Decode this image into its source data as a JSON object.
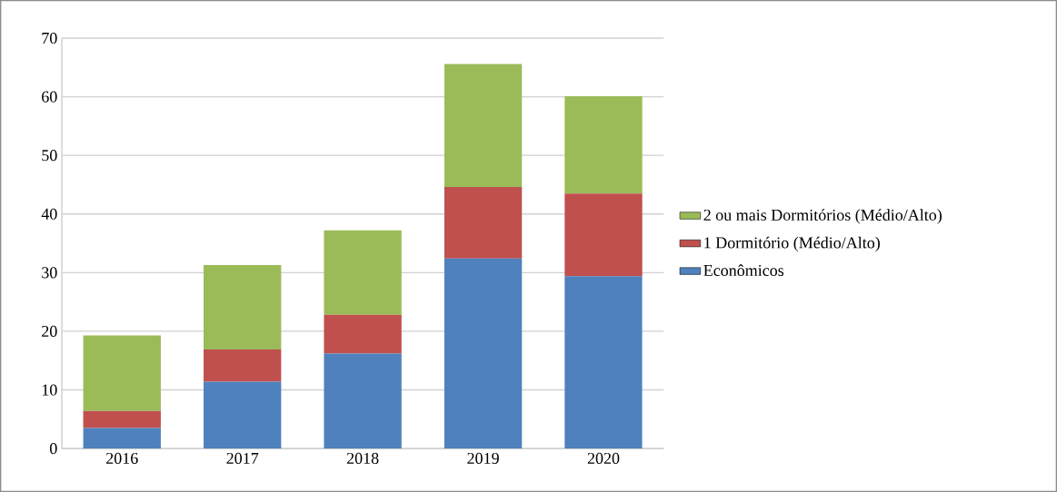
{
  "chart_data": {
    "type": "bar",
    "stacked": true,
    "categories": [
      "2016",
      "2017",
      "2018",
      "2019",
      "2020"
    ],
    "series": [
      {
        "name": "Econômicos",
        "color": "#4f81bd",
        "values": [
          3.5,
          11.4,
          16.2,
          32.4,
          29.4
        ]
      },
      {
        "name": "1 Dormitório (Médio/Alto)",
        "color": "#c0504d",
        "values": [
          2.9,
          5.5,
          6.6,
          12.2,
          14.1
        ]
      },
      {
        "name": "2 ou mais Dormitórios (Médio/Alto)",
        "color": "#9bbb59",
        "values": [
          12.9,
          14.4,
          14.4,
          21.0,
          16.6
        ]
      }
    ],
    "ylim": [
      0,
      70
    ],
    "yticks": [
      0,
      10,
      20,
      30,
      40,
      50,
      60,
      70
    ],
    "grid": "y",
    "legend": "right"
  }
}
